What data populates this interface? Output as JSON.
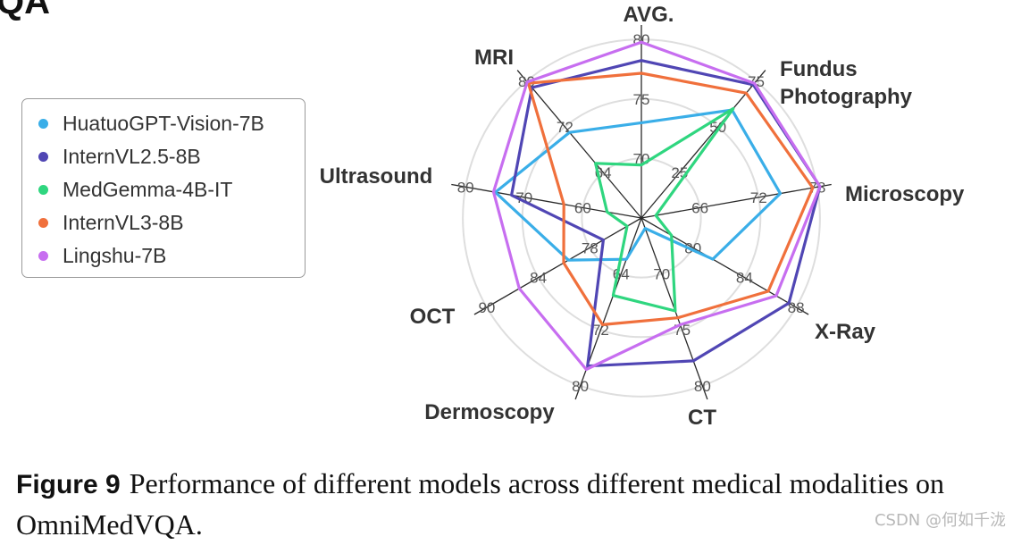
{
  "corner_text": "QA",
  "chart_data": {
    "type": "radar",
    "axes": [
      "AVG.",
      "Fundus Photography",
      "Microscopy",
      "X-Ray",
      "CT",
      "Dermoscopy",
      "OCT",
      "Ultrasound",
      "MRI"
    ],
    "tick_labels": [
      [
        "70",
        "75",
        "80"
      ],
      [
        "25",
        "50",
        "75"
      ],
      [
        "66",
        "72",
        "78"
      ],
      [
        "80",
        "84",
        "88"
      ],
      [
        "70",
        "75",
        "80"
      ],
      [
        "64",
        "72",
        "80"
      ],
      [
        "78",
        "84",
        "90"
      ],
      [
        "60",
        "70",
        "80"
      ],
      [
        "64",
        "72",
        "80"
      ]
    ],
    "series": [
      {
        "name": "HuatuoGPT-Vision-7B",
        "color": "#3aaee8",
        "values": [
          0.52,
          0.77,
          0.77,
          0.45,
          0.06,
          0.24,
          0.46,
          0.81,
          0.61
        ]
      },
      {
        "name": "InternVL2.5-8B",
        "color": "#5046b4",
        "values": [
          0.86,
          0.95,
          0.99,
          0.93,
          0.83,
          0.86,
          0.24,
          0.72,
          0.93
        ]
      },
      {
        "name": "MedGemma-4B-IT",
        "color": "#2fd67f",
        "values": [
          0.29,
          0.78,
          0.08,
          0.19,
          0.54,
          0.45,
          0.09,
          0.19,
          0.39
        ]
      },
      {
        "name": "InternVL3-8B",
        "color": "#f0703c",
        "values": [
          0.79,
          0.89,
          0.95,
          0.8,
          0.58,
          0.62,
          0.49,
          0.43,
          0.96
        ]
      },
      {
        "name": "Lingshu-7B",
        "color": "#c76ef0",
        "values": [
          0.96,
          0.96,
          0.99,
          0.85,
          0.62,
          0.88,
          0.77,
          0.82,
          0.97
        ]
      }
    ],
    "ring_fractions": [
      0.325,
      0.65,
      0.975
    ]
  },
  "caption": {
    "label": "Figure 9",
    "text": "Performance of different models across different medical modalities on OmniMedVQA."
  },
  "watermark": "CSDN @何如千泷"
}
